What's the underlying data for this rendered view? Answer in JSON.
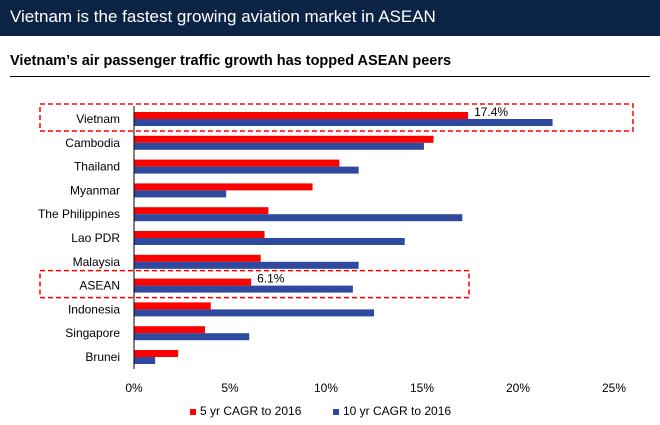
{
  "header": {
    "title": "Vietnam is the fastest growing aviation market in ASEAN",
    "subtitle": "Vietnam’s air passenger traffic growth has topped ASEAN peers"
  },
  "chart_data": {
    "type": "bar",
    "orientation": "horizontal",
    "title": "Vietnam’s air passenger traffic growth has topped ASEAN peers",
    "categories": [
      "Vietnam",
      "Cambodia",
      "Thailand",
      "Myanmar",
      "The Philippines",
      "Lao PDR",
      "Malaysia",
      "ASEAN",
      "Indonesia",
      "Singapore",
      "Brunei"
    ],
    "series": [
      {
        "name": "5 yr CAGR to 2016",
        "color": "#ff0000",
        "values": [
          17.4,
          15.6,
          10.7,
          9.3,
          7.0,
          6.8,
          6.6,
          6.1,
          4.0,
          3.7,
          2.3
        ]
      },
      {
        "name": "10 yr CAGR to 2016",
        "color": "#2e4a9e",
        "values": [
          21.8,
          15.1,
          11.7,
          4.8,
          17.1,
          14.1,
          11.7,
          11.4,
          12.5,
          6.0,
          1.1
        ]
      }
    ],
    "xlim": [
      0,
      25
    ],
    "xticks": [
      "0%",
      "5%",
      "10%",
      "15%",
      "20%",
      "25%"
    ],
    "legend_position": "bottom",
    "grid": false,
    "annotations": [
      {
        "category": "Vietnam",
        "label": "17.4%"
      },
      {
        "category": "ASEAN",
        "label": "6.1%"
      }
    ],
    "highlight_color": "#ff0000"
  }
}
